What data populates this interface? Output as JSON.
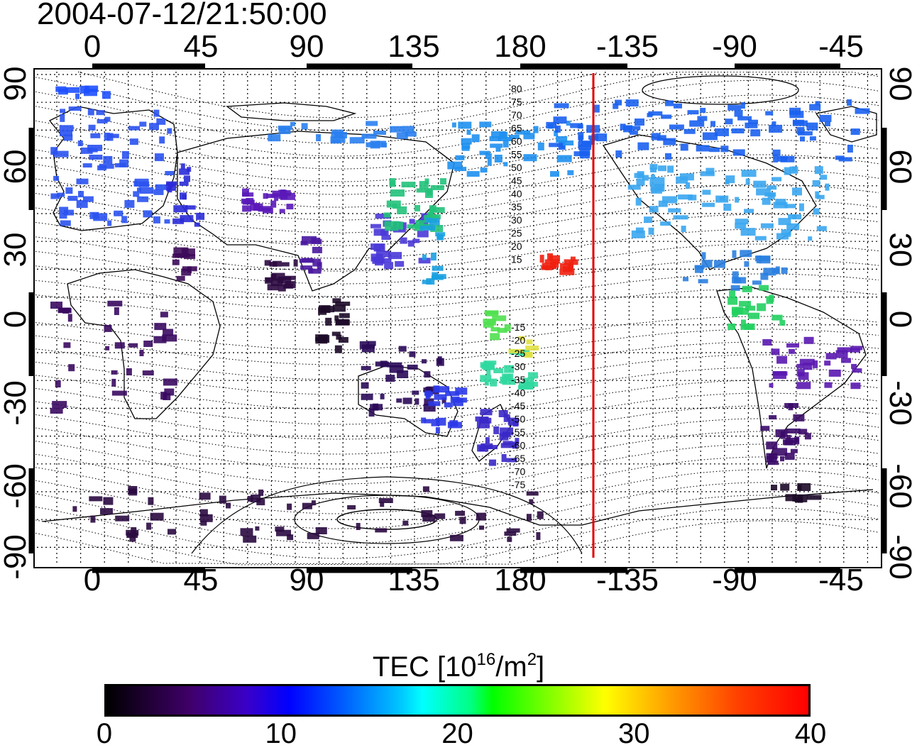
{
  "title": "2004-07-12/21:50:00",
  "map": {
    "lon_ticks_top": [
      "0",
      "45",
      "90",
      "135",
      "180",
      "-135",
      "-90",
      "-45"
    ],
    "lon_ticks_bottom": [
      "0",
      "45",
      "90",
      "135",
      "180",
      "-135",
      "-90",
      "-45"
    ],
    "lat_ticks_left": [
      "90",
      "60",
      "30",
      "0",
      "-30",
      "-60",
      "-90"
    ],
    "lat_ticks_right": [
      "90",
      "60",
      "30",
      "0",
      "-30",
      "-60",
      "-90"
    ],
    "contour_labels": [
      "80",
      "75",
      "70",
      "65",
      "60",
      "55",
      "50",
      "45",
      "40",
      "35",
      "30",
      "25",
      "20",
      "15",
      "-15",
      "-20",
      "-25",
      "-30",
      "-35",
      "-40",
      "-45",
      "-50",
      "-55",
      "-60",
      "-65",
      "-70",
      "-75"
    ],
    "terminator_line_color": "#e00000",
    "terminator_longitude": -150
  },
  "colorbar": {
    "label_main": "TEC  [10",
    "label_sup1": "16",
    "label_mid": "/m",
    "label_sup2": "2",
    "label_end": "]",
    "ticks": [
      "0",
      "10",
      "20",
      "30",
      "40"
    ],
    "range": [
      0,
      40
    ]
  }
}
